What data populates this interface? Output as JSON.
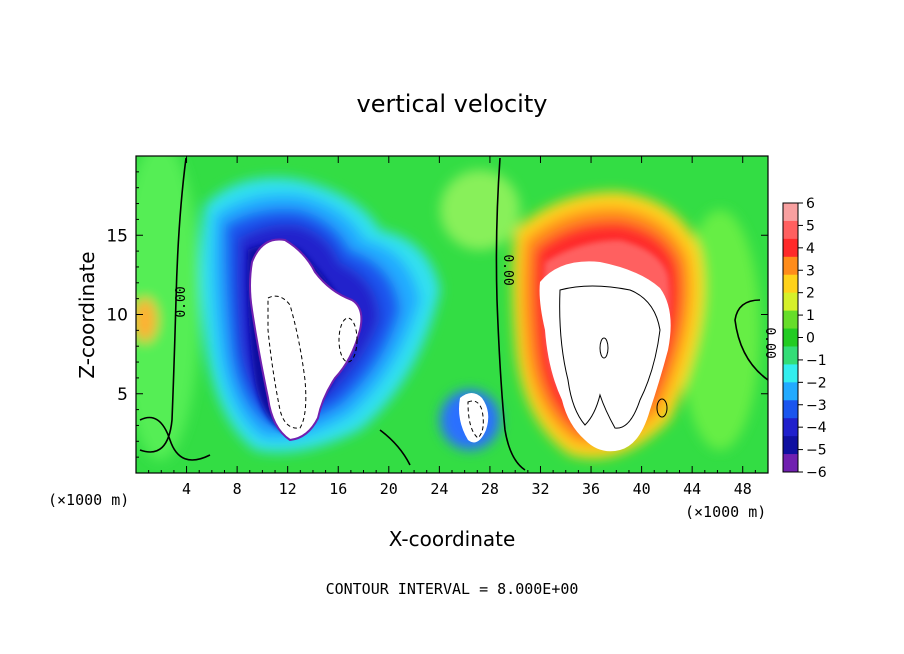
{
  "chart_data": {
    "type": "heatmap",
    "title": "vertical velocity",
    "xlabel": "X-coordinate",
    "ylabel": "Z-coordinate",
    "x_unit_left": "(×1000 m)",
    "x_unit_right": "(×1000 m)",
    "xlim": [
      0,
      50
    ],
    "ylim": [
      0,
      20
    ],
    "xticks": [
      4,
      8,
      12,
      16,
      20,
      24,
      28,
      32,
      36,
      40,
      44,
      48
    ],
    "yticks": [
      5,
      10,
      15
    ],
    "colorbar": {
      "min": -6,
      "max": 6,
      "ticks": [
        "6",
        "5",
        "4",
        "3",
        "2",
        "1",
        "0",
        "−1",
        "−2",
        "−3",
        "−4",
        "−5",
        "−6"
      ],
      "colors": [
        "#f8a0a0",
        "#ff6060",
        "#ff2a2a",
        "#ff8c1a",
        "#ffd21a",
        "#d6f02a",
        "#66dd2a",
        "#22cc22",
        "#33dd77",
        "#33eeee",
        "#22aaff",
        "#1a55ee",
        "#2020cc",
        "#1010a0",
        "#7020b0"
      ]
    },
    "contour_labels": [
      {
        "text": "0.00",
        "x": 3.3,
        "z": 10.5
      },
      {
        "text": "0.00",
        "x": 28.4,
        "z": 12.7
      },
      {
        "text": "0.00",
        "x": 49.2,
        "z": 8.3
      }
    ],
    "features": [
      {
        "kind": "downdraft",
        "x": [
          8,
          20
        ],
        "z": [
          2,
          18
        ],
        "w_min": "< -6"
      },
      {
        "kind": "downdraft",
        "x": [
          26,
          28
        ],
        "z": [
          2,
          5
        ],
        "w_min": "< -6"
      },
      {
        "kind": "updraft",
        "x": [
          31,
          44
        ],
        "z": [
          1,
          16
        ],
        "w_max": "> 6"
      }
    ],
    "contour_interval_label": "CONTOUR INTERVAL = 8.000E+00"
  }
}
